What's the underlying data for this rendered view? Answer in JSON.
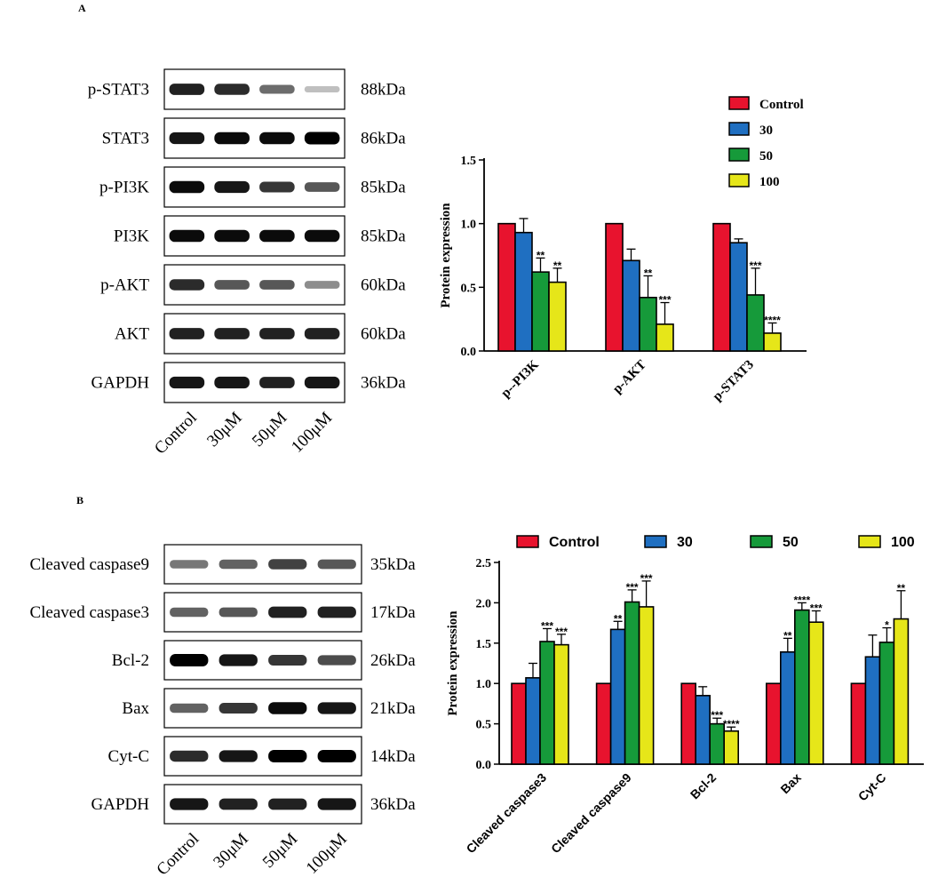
{
  "panel_a": {
    "label": "A",
    "blot": {
      "rows": [
        {
          "label": "p-STAT3",
          "size": "88kDa",
          "intensity": [
            0.85,
            0.8,
            0.5,
            0.12
          ]
        },
        {
          "label": "STAT3",
          "size": "86kDa",
          "intensity": [
            0.9,
            0.95,
            0.95,
            1.0
          ]
        },
        {
          "label": "p-PI3K",
          "size": "85kDa",
          "intensity": [
            0.95,
            0.9,
            0.75,
            0.6
          ]
        },
        {
          "label": "PI3K",
          "size": "85kDa",
          "intensity": [
            0.95,
            0.95,
            0.95,
            0.95
          ]
        },
        {
          "label": "p-AKT",
          "size": "60kDa",
          "intensity": [
            0.8,
            0.6,
            0.6,
            0.35
          ]
        },
        {
          "label": "AKT",
          "size": "60kDa",
          "intensity": [
            0.85,
            0.85,
            0.85,
            0.85
          ]
        },
        {
          "label": "GAPDH",
          "size": "36kDa",
          "intensity": [
            0.9,
            0.9,
            0.85,
            0.9
          ]
        }
      ],
      "lanes": [
        "Control",
        "30μM",
        "50μM",
        "100μM"
      ]
    }
  },
  "panel_b": {
    "label": "B",
    "blot": {
      "rows": [
        {
          "label": "Cleaved caspase9",
          "size": "35kDa",
          "intensity": [
            0.45,
            0.55,
            0.7,
            0.6
          ]
        },
        {
          "label": "Cleaved caspase3",
          "size": "17kDa",
          "intensity": [
            0.55,
            0.6,
            0.85,
            0.85
          ]
        },
        {
          "label": "Bcl-2",
          "size": "26kDa",
          "intensity": [
            1.0,
            0.9,
            0.75,
            0.65
          ]
        },
        {
          "label": "Bax",
          "size": "21kDa",
          "intensity": [
            0.55,
            0.75,
            0.95,
            0.9
          ]
        },
        {
          "label": "Cyt-C",
          "size": "14kDa",
          "intensity": [
            0.8,
            0.9,
            1.0,
            1.0
          ]
        },
        {
          "label": "GAPDH",
          "size": "36kDa",
          "intensity": [
            0.9,
            0.85,
            0.85,
            0.9
          ]
        }
      ],
      "lanes": [
        "Control",
        "30μM",
        "50μM",
        "100μM"
      ]
    }
  },
  "chart_data": [
    {
      "type": "bar",
      "ylabel": "Protein expression",
      "ylim": [
        0,
        1.5
      ],
      "yticks": [
        "0.0",
        "0.5",
        "1.0",
        "1.5"
      ],
      "categories": [
        "p--PI3K",
        "p-AKT",
        "p-STAT3"
      ],
      "legend_position": "top-right",
      "series": [
        {
          "name": "Control",
          "color": "#e8132e",
          "values": [
            1.0,
            1.0,
            1.0
          ],
          "errors": [
            0,
            0,
            0
          ],
          "sig": [
            "",
            "",
            ""
          ]
        },
        {
          "name": "30",
          "color": "#1f6fc1",
          "values": [
            0.93,
            0.71,
            0.85
          ],
          "errors": [
            0.11,
            0.09,
            0.03
          ],
          "sig": [
            "",
            "",
            ""
          ]
        },
        {
          "name": "50",
          "color": "#169a3a",
          "values": [
            0.62,
            0.42,
            0.44
          ],
          "errors": [
            0.11,
            0.17,
            0.21
          ],
          "sig": [
            "**",
            "**",
            "***"
          ]
        },
        {
          "name": "100",
          "color": "#e6e619",
          "values": [
            0.54,
            0.21,
            0.14
          ],
          "errors": [
            0.11,
            0.17,
            0.08
          ],
          "sig": [
            "**",
            "***",
            "****"
          ]
        }
      ]
    },
    {
      "type": "bar",
      "ylabel": "Protein expression",
      "ylim": [
        0,
        2.5
      ],
      "yticks": [
        "0.0",
        "0.5",
        "1.0",
        "1.5",
        "2.0",
        "2.5"
      ],
      "categories": [
        "Cleaved caspase3",
        "Cleaved caspase9",
        "Bcl-2",
        "Bax",
        "Cyt-C"
      ],
      "legend_position": "top",
      "series": [
        {
          "name": "Control",
          "color": "#e8132e",
          "values": [
            1.0,
            1.0,
            1.0,
            1.0,
            1.0
          ],
          "errors": [
            0,
            0,
            0,
            0,
            0
          ],
          "sig": [
            "",
            "",
            "",
            "",
            ""
          ]
        },
        {
          "name": "30",
          "color": "#1f6fc1",
          "values": [
            1.07,
            1.67,
            0.85,
            1.39,
            1.33
          ],
          "errors": [
            0.18,
            0.1,
            0.11,
            0.17,
            0.27
          ],
          "sig": [
            "",
            "**",
            "",
            "**",
            ""
          ]
        },
        {
          "name": "50",
          "color": "#169a3a",
          "values": [
            1.52,
            2.01,
            0.5,
            1.91,
            1.51
          ],
          "errors": [
            0.16,
            0.15,
            0.07,
            0.09,
            0.18
          ],
          "sig": [
            "***",
            "***",
            "***",
            "****",
            "*"
          ]
        },
        {
          "name": "100",
          "color": "#e6e619",
          "values": [
            1.48,
            1.95,
            0.41,
            1.76,
            1.8
          ],
          "errors": [
            0.13,
            0.32,
            0.05,
            0.14,
            0.35
          ],
          "sig": [
            "***",
            "***",
            "****",
            "***",
            "**"
          ]
        }
      ]
    }
  ]
}
